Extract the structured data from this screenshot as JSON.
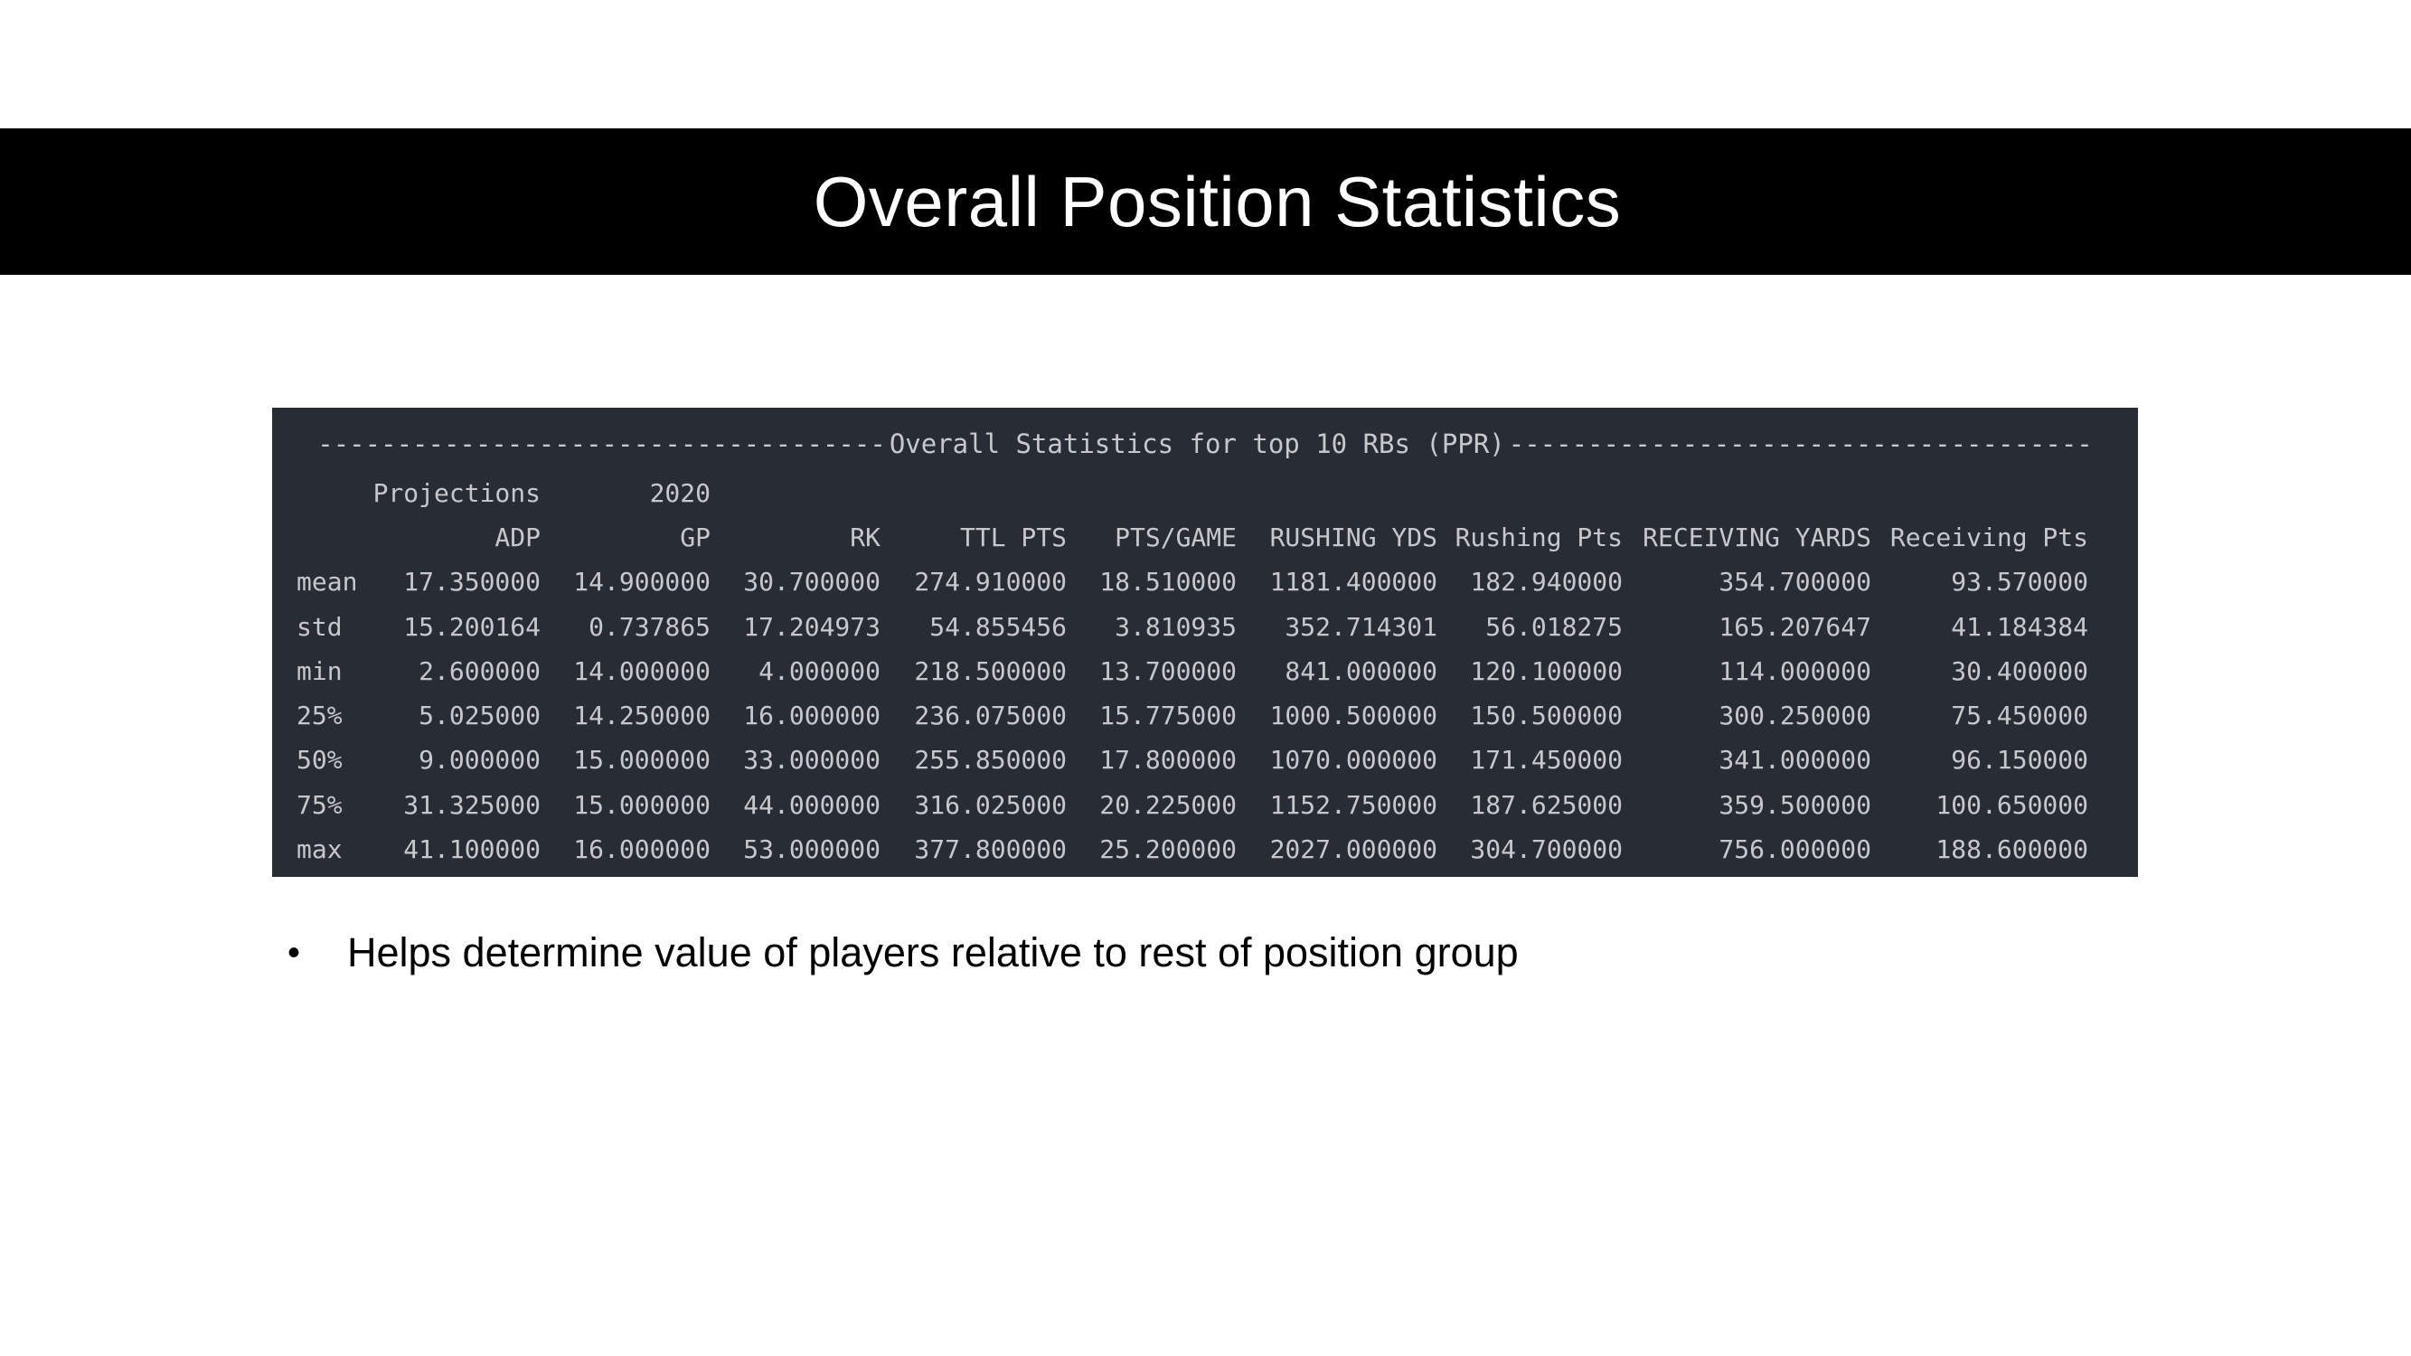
{
  "slide": {
    "title": "Overall Position Statistics",
    "bullets": [
      {
        "marker": "•",
        "text": "Helps determine value of players relative to rest of position group"
      }
    ]
  },
  "colors": {
    "title_bar_bg": "#000000",
    "title_text": "#ffffff",
    "console_bg": "#282c34",
    "console_text": "#c6c8cc"
  },
  "console": {
    "dashes_left": "------------------------------------",
    "header_title": "Overall Statistics for top 10 RBs (PPR)",
    "dashes_right": "-------------------------------------",
    "group_headers": {
      "projections": "Projections",
      "year": "2020"
    },
    "columns": [
      "ADP",
      "GP",
      "RK",
      "TTL PTS",
      "PTS/GAME",
      "RUSHING YDS",
      "Rushing Pts",
      "RECEIVING YARDS",
      "Receiving Pts"
    ],
    "rows": [
      {
        "label": "mean",
        "cells": [
          "17.350000",
          "14.900000",
          "30.700000",
          "274.910000",
          "18.510000",
          "1181.400000",
          "182.940000",
          "354.700000",
          "93.570000"
        ]
      },
      {
        "label": "std",
        "cells": [
          "15.200164",
          "0.737865",
          "17.204973",
          "54.855456",
          "3.810935",
          "352.714301",
          "56.018275",
          "165.207647",
          "41.184384"
        ]
      },
      {
        "label": "min",
        "cells": [
          "2.600000",
          "14.000000",
          "4.000000",
          "218.500000",
          "13.700000",
          "841.000000",
          "120.100000",
          "114.000000",
          "30.400000"
        ]
      },
      {
        "label": "25%",
        "cells": [
          "5.025000",
          "14.250000",
          "16.000000",
          "236.075000",
          "15.775000",
          "1000.500000",
          "150.500000",
          "300.250000",
          "75.450000"
        ]
      },
      {
        "label": "50%",
        "cells": [
          "9.000000",
          "15.000000",
          "33.000000",
          "255.850000",
          "17.800000",
          "1070.000000",
          "171.450000",
          "341.000000",
          "96.150000"
        ]
      },
      {
        "label": "75%",
        "cells": [
          "31.325000",
          "15.000000",
          "44.000000",
          "316.025000",
          "20.225000",
          "1152.750000",
          "187.625000",
          "359.500000",
          "100.650000"
        ]
      },
      {
        "label": "max",
        "cells": [
          "41.100000",
          "16.000000",
          "53.000000",
          "377.800000",
          "25.200000",
          "2027.000000",
          "304.700000",
          "756.000000",
          "188.600000"
        ]
      }
    ]
  }
}
